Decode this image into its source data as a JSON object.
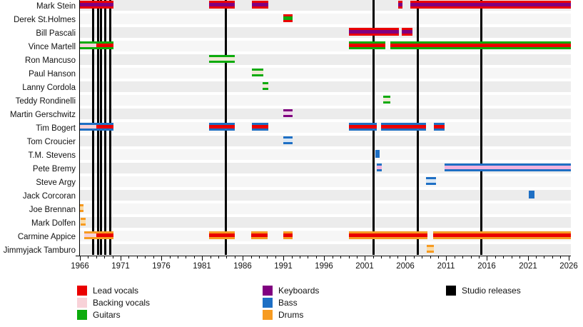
{
  "chart_data": {
    "type": "bar",
    "subtype": "band-membership-timeline",
    "title": "",
    "x_axis": {
      "start": 1966,
      "end": 2026.3,
      "major_ticks": [
        1966,
        1971,
        1976,
        1981,
        1986,
        1991,
        1996,
        2001,
        2006,
        2011,
        2016,
        2021,
        2026
      ],
      "minor_tick_step": 1
    },
    "colors": {
      "lead": "#ea0000",
      "backing": "#f8d2d8",
      "guitars": "#0cab0c",
      "keys": "#800080",
      "bass": "#1e6fc4",
      "drums": "#f79b21",
      "release": "#000000",
      "cream": "#efe8d4",
      "palepink": "#eed7e9",
      "paleblue": "#d9e7f5",
      "paleorange": "#fbdca8",
      "pinkstripe": "#f2b3de"
    },
    "members": [
      {
        "name": "Mark Stein",
        "segments": [
          {
            "from": 1966,
            "to": 1970.1,
            "color": "lead",
            "stripes": [
              {
                "from": 1966,
                "to": 1970.1,
                "color": "keys"
              }
            ]
          },
          {
            "from": 1981.9,
            "to": 1985.05,
            "color": "lead",
            "stripes": [
              {
                "from": 1981.9,
                "to": 1985.05,
                "color": "keys"
              }
            ]
          },
          {
            "from": 1987.1,
            "to": 1989.1,
            "color": "lead",
            "stripes": [
              {
                "from": 1987.1,
                "to": 1989.1,
                "color": "keys"
              }
            ]
          },
          {
            "from": 2005.1,
            "to": 2005.65,
            "color": "lead",
            "stripes": [
              {
                "from": 2005.1,
                "to": 2005.65,
                "color": "keys"
              }
            ]
          },
          {
            "from": 2006.55,
            "to": 2026.3,
            "color": "lead",
            "stripes": [
              {
                "from": 2006.55,
                "to": 2026.3,
                "color": "keys"
              }
            ]
          }
        ]
      },
      {
        "name": "Derek St.Holmes",
        "segments": [
          {
            "from": 1991,
            "to": 1992.15,
            "color": "lead",
            "stripes": [
              {
                "from": 1991,
                "to": 1992.15,
                "color": "guitars"
              }
            ]
          }
        ]
      },
      {
        "name": "Bill Pascali",
        "segments": [
          {
            "from": 1999,
            "to": 2005.1,
            "color": "lead",
            "stripes": [
              {
                "from": 1999,
                "to": 2005.1,
                "color": "keys"
              }
            ]
          },
          {
            "from": 2005.5,
            "to": 2006.8,
            "color": "lead",
            "stripes": [
              {
                "from": 2005.5,
                "to": 2006.8,
                "color": "keys"
              }
            ]
          }
        ]
      },
      {
        "name": "Vince Martell",
        "segments": [
          {
            "from": 1966,
            "to": 1970.1,
            "color": "guitars",
            "stripes": [
              {
                "from": 1966,
                "to": 1968,
                "color": "backing"
              },
              {
                "from": 1968,
                "to": 1970.1,
                "color": "lead"
              }
            ]
          },
          {
            "from": 1999,
            "to": 2003.5,
            "color": "guitars",
            "stripes": [
              {
                "from": 1999,
                "to": 2003.5,
                "color": "lead"
              }
            ]
          },
          {
            "from": 2004.1,
            "to": 2026.3,
            "color": "guitars",
            "stripes": [
              {
                "from": 2004.1,
                "to": 2026.3,
                "color": "lead"
              }
            ]
          }
        ]
      },
      {
        "name": "Ron Mancuso",
        "segments": [
          {
            "from": 1981.9,
            "to": 1985.05,
            "color": "guitars",
            "stripes": [
              {
                "from": 1981.9,
                "to": 1985.05,
                "color": "cream"
              }
            ]
          }
        ]
      },
      {
        "name": "Paul Hanson",
        "segments": [
          {
            "from": 1987.1,
            "to": 1988.5,
            "color": "guitars",
            "stripes": [
              {
                "from": 1987.1,
                "to": 1988.5,
                "color": "cream"
              }
            ]
          }
        ]
      },
      {
        "name": "Lanny Cordola",
        "segments": [
          {
            "from": 1988.4,
            "to": 1989.1,
            "color": "guitars",
            "stripes": [
              {
                "from": 1988.4,
                "to": 1989.1,
                "color": "cream"
              }
            ]
          }
        ]
      },
      {
        "name": "Teddy Rondinelli",
        "segments": [
          {
            "from": 2003.25,
            "to": 2004.15,
            "color": "guitars",
            "stripes": [
              {
                "from": 2003.25,
                "to": 2004.15,
                "color": "cream"
              }
            ]
          }
        ]
      },
      {
        "name": "Martin Gerschwitz",
        "segments": [
          {
            "from": 1991,
            "to": 1992.15,
            "color": "keys",
            "stripes": [
              {
                "from": 1991,
                "to": 1992.15,
                "color": "palepink"
              }
            ]
          }
        ]
      },
      {
        "name": "Tim Bogert",
        "segments": [
          {
            "from": 1966,
            "to": 1970.1,
            "color": "bass",
            "stripes": [
              {
                "from": 1966,
                "to": 1968,
                "color": "backing"
              },
              {
                "from": 1968,
                "to": 1970.1,
                "color": "lead"
              }
            ]
          },
          {
            "from": 1981.9,
            "to": 1985.05,
            "color": "bass",
            "stripes": [
              {
                "from": 1981.9,
                "to": 1985.05,
                "color": "lead"
              }
            ]
          },
          {
            "from": 1987.1,
            "to": 1989.1,
            "color": "bass",
            "stripes": [
              {
                "from": 1987.1,
                "to": 1989.1,
                "color": "lead"
              }
            ]
          },
          {
            "from": 1999,
            "to": 2002.4,
            "color": "bass",
            "stripes": [
              {
                "from": 1999,
                "to": 2002.4,
                "color": "lead"
              }
            ]
          },
          {
            "from": 2003,
            "to": 2008.55,
            "color": "bass",
            "stripes": [
              {
                "from": 2003,
                "to": 2008.55,
                "color": "lead"
              }
            ]
          },
          {
            "from": 2009.5,
            "to": 2010.8,
            "color": "bass",
            "stripes": [
              {
                "from": 2009.5,
                "to": 2010.8,
                "color": "lead"
              }
            ]
          }
        ]
      },
      {
        "name": "Tom Croucier",
        "segments": [
          {
            "from": 1991,
            "to": 1992.15,
            "color": "bass",
            "stripes": [
              {
                "from": 1991,
                "to": 1992.15,
                "color": "paleblue"
              }
            ]
          }
        ]
      },
      {
        "name": "T.M. Stevens",
        "segments": [
          {
            "from": 2002.3,
            "to": 2002.85,
            "color": "bass",
            "stripes": []
          }
        ]
      },
      {
        "name": "Pete Bremy",
        "segments": [
          {
            "from": 2002.5,
            "to": 2003.1,
            "color": "bass",
            "stripes": [
              {
                "from": 2002.5,
                "to": 2003.1,
                "color": "pinkstripe"
              }
            ]
          },
          {
            "from": 2010.8,
            "to": 2026.3,
            "color": "bass",
            "stripes": [
              {
                "from": 2010.8,
                "to": 2026.3,
                "color": "pinkstripe"
              }
            ]
          }
        ]
      },
      {
        "name": "Steve Argy",
        "segments": [
          {
            "from": 2008.55,
            "to": 2009.8,
            "color": "bass",
            "stripes": [
              {
                "from": 2008.55,
                "to": 2009.8,
                "color": "paleblue"
              }
            ]
          }
        ]
      },
      {
        "name": "Jack Corcoran",
        "segments": [
          {
            "from": 2021.1,
            "to": 2021.8,
            "color": "bass",
            "stripes": []
          }
        ]
      },
      {
        "name": "Joe Brennan",
        "segments": [
          {
            "from": 1966,
            "to": 1966.4,
            "color": "drums",
            "stripes": [
              {
                "from": 1966,
                "to": 1966.4,
                "color": "paleorange"
              }
            ]
          }
        ]
      },
      {
        "name": "Mark Dolfen",
        "segments": [
          {
            "from": 1966.05,
            "to": 1966.7,
            "color": "drums",
            "stripes": [
              {
                "from": 1966.05,
                "to": 1966.7,
                "color": "paleorange"
              }
            ]
          }
        ]
      },
      {
        "name": "Carmine Appice",
        "segments": [
          {
            "from": 1966.5,
            "to": 1970.1,
            "color": "drums",
            "stripes": [
              {
                "from": 1966.5,
                "to": 1968,
                "color": "backing"
              },
              {
                "from": 1968,
                "to": 1970.1,
                "color": "lead"
              }
            ]
          },
          {
            "from": 1981.9,
            "to": 1985.05,
            "color": "drums",
            "stripes": [
              {
                "from": 1981.9,
                "to": 1985.05,
                "color": "lead"
              }
            ]
          },
          {
            "from": 1987,
            "to": 1989,
            "color": "drums",
            "stripes": [
              {
                "from": 1987,
                "to": 1989,
                "color": "lead"
              }
            ]
          },
          {
            "from": 1991,
            "to": 1992.15,
            "color": "drums",
            "stripes": [
              {
                "from": 1991,
                "to": 1992.15,
                "color": "lead"
              }
            ]
          },
          {
            "from": 1999,
            "to": 2008.6,
            "color": "drums",
            "stripes": [
              {
                "from": 1999,
                "to": 2008.6,
                "color": "lead"
              }
            ]
          },
          {
            "from": 2009.35,
            "to": 2026.3,
            "color": "drums",
            "stripes": [
              {
                "from": 2009.35,
                "to": 2026.3,
                "color": "lead"
              }
            ]
          }
        ]
      },
      {
        "name": "Jimmyjack Tamburo",
        "segments": [
          {
            "from": 2008.6,
            "to": 2009.5,
            "color": "drums",
            "stripes": [
              {
                "from": 2008.6,
                "to": 2009.5,
                "color": "paleorange"
              }
            ]
          }
        ]
      }
    ],
    "releases": {
      "label": "Studio releases",
      "years": [
        1967.55,
        1968.15,
        1968.55,
        1969.1,
        1969.7,
        1983.9,
        2002.05,
        2007.45,
        2015.25
      ]
    },
    "legend": {
      "columns": [
        [
          {
            "label": "Lead vocals",
            "color": "lead"
          },
          {
            "label": "Backing vocals",
            "color": "backing"
          },
          {
            "label": "Guitars",
            "color": "guitars"
          }
        ],
        [
          {
            "label": "Keyboards",
            "color": "keys"
          },
          {
            "label": "Bass",
            "color": "bass"
          },
          {
            "label": "Drums",
            "color": "drums"
          }
        ],
        [
          {
            "label": "Studio releases",
            "color": "release"
          }
        ]
      ]
    }
  }
}
